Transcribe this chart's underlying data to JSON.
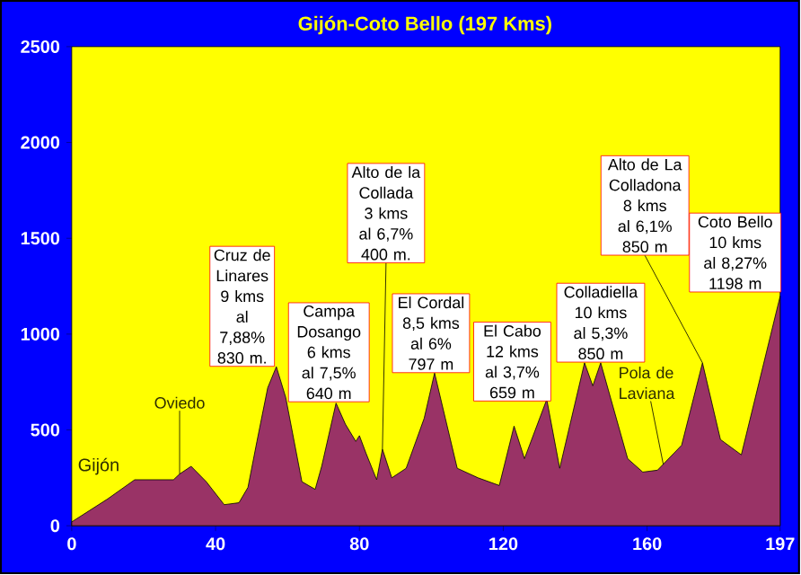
{
  "chart_data": {
    "type": "area",
    "title": "Gijón-Coto Bello (197 Kms)",
    "x": [
      0,
      5,
      10,
      17.5,
      28.3,
      30,
      33.2,
      37.4,
      42.4,
      46.5,
      49,
      51.5,
      54.5,
      56.9,
      59.5,
      64,
      67.7,
      69.5,
      73.5,
      76.1,
      79,
      80,
      81.8,
      84.8,
      86.4,
      89,
      93,
      98,
      100.9,
      103.9,
      107.2,
      113,
      118.9,
      123,
      125.9,
      132.1,
      135.7,
      142.6,
      144.9,
      147.1,
      154.6,
      158.8,
      162.9,
      169.6,
      175.4,
      180.4,
      186.2,
      197
    ],
    "series": [
      {
        "color": "#993366",
        "values": [
          20,
          80,
          140,
          240,
          240,
          270,
          310,
          230,
          110,
          120,
          200,
          440,
          720,
          830,
          670,
          230,
          190,
          310,
          640,
          530,
          440,
          470,
          380,
          240,
          400,
          250,
          300,
          560,
          797,
          560,
          300,
          250,
          210,
          520,
          350,
          659,
          300,
          850,
          730,
          850,
          350,
          280,
          290,
          420,
          850,
          450,
          370,
          1198
        ]
      }
    ],
    "xlim": [
      0,
      197
    ],
    "xticks": [
      0,
      40,
      80,
      120,
      160,
      197
    ],
    "ylim": [
      0,
      2500
    ],
    "yticks": [
      0,
      500,
      1000,
      1500,
      2000,
      2500
    ],
    "grid": false,
    "annotations": [
      {
        "text": "Gijón",
        "x": 0,
        "y": 20
      },
      {
        "text": "Oviedo",
        "x": 30,
        "y": 270
      },
      {
        "text": "Cruz de Linares 9 kms al 7,88% 830 m.",
        "x": 56.9,
        "y": 830
      },
      {
        "text": "Campa Dosango 6 kms al 7,5% 640 m",
        "x": 73.5,
        "y": 640
      },
      {
        "text": "Alto de la Collada 3 kms al 6,7% 400 m.",
        "x": 86.4,
        "y": 400
      },
      {
        "text": "El Cordal 8,5 kms al 6% 797 m",
        "x": 100.9,
        "y": 797
      },
      {
        "text": "El Cabo 12 kms al 3,7% 659 m",
        "x": 132.1,
        "y": 659
      },
      {
        "text": "Colladiella 10 kms al 5,3% 850 m",
        "x": 147.1,
        "y": 850
      },
      {
        "text": "Pola de Laviana",
        "x": 164.5,
        "y": 320
      },
      {
        "text": "Alto de La Colladona 8 kms al 6,1% 850 m",
        "x": 175.4,
        "y": 850
      },
      {
        "text": "Coto Bello 10 kms al 8,27% 1198 m",
        "x": 197,
        "y": 1198
      }
    ]
  }
}
